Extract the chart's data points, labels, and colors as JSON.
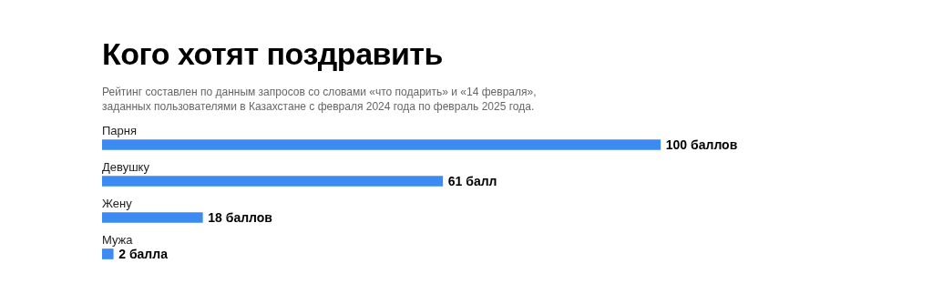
{
  "chart_data": {
    "type": "bar",
    "orientation": "horizontal",
    "title": "Кого хотят поздравить",
    "subtitle": "Рейтинг составлен по данным запросов со словами «что подарить» и «14 февраля»,\nзаданных пользователями в Казахстане с февраля 2024 года по февраль 2025 года.",
    "categories": [
      "Парня",
      "Девушку",
      "Жену",
      "Мужа"
    ],
    "values": [
      100,
      61,
      18,
      2
    ],
    "value_labels": [
      "100 баллов",
      "61 балл",
      "18 баллов",
      "2 балла"
    ],
    "color": "#3b8bf3"
  }
}
